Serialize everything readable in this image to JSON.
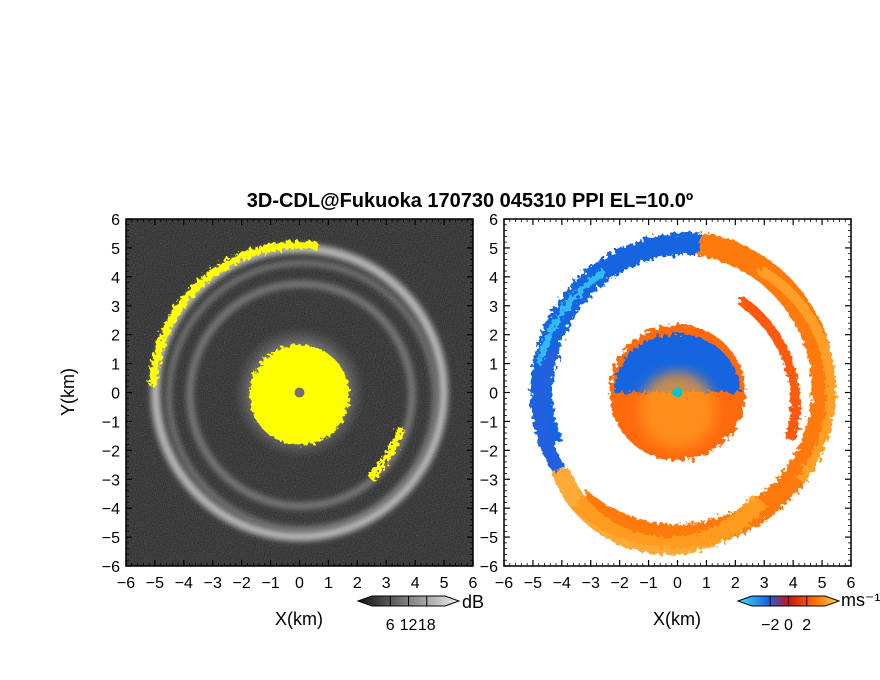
{
  "chart_data": {
    "type": "heatmap",
    "title": "3D-CDL@Fukuoka 170730 045310 PPI EL=10.0º",
    "xlim": [
      -6,
      6
    ],
    "ylim": [
      -6,
      6
    ],
    "major_ticks": [
      -6,
      -5,
      -4,
      -3,
      -2,
      -1,
      0,
      1,
      2,
      3,
      4,
      5,
      6
    ],
    "panels": [
      {
        "id": "snr",
        "xlabel": "X(km)",
        "ylabel": "Y(km)",
        "quantity_unit": "dB",
        "colorbar_ticks": [
          6,
          12,
          18
        ],
        "colors": {
          "background": "#1e1e1e",
          "saturated": "#ffff00",
          "center": "#707070"
        }
      },
      {
        "id": "doppler-velocity",
        "xlabel": "X(km)",
        "ylabel": "",
        "quantity_unit": "ms⁻¹",
        "colorbar_ticks": [
          -2,
          0,
          2
        ],
        "colors": {
          "negative": "#1565e0",
          "zero": "#c81414",
          "positive": "#ffa014",
          "center": "#00c8c8"
        }
      }
    ],
    "features": {
      "inner_core_radius_km": 1.5,
      "inner_ring_radius_km": 3.8,
      "outer_ring_radius_km": 5.0
    }
  }
}
